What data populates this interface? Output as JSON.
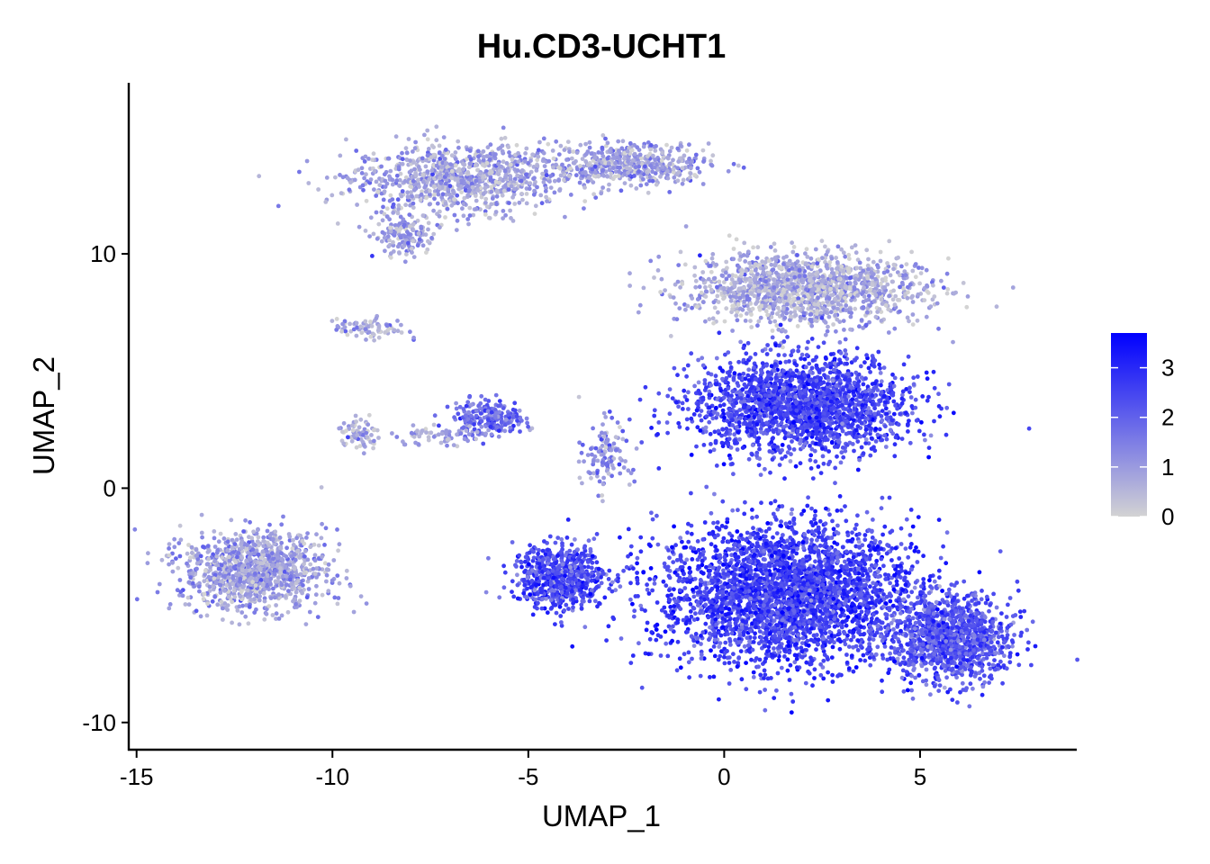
{
  "chart_data": {
    "type": "scatter",
    "title": "Hu.CD3-UCHT1",
    "xlabel": "UMAP_1",
    "ylabel": "UMAP_2",
    "xlim": [
      -15.2,
      9.0
    ],
    "ylim": [
      -11.2,
      17.3
    ],
    "x_ticks": [
      -15,
      -10,
      -5,
      0,
      5
    ],
    "y_ticks": [
      -10,
      0,
      10
    ],
    "grid": false,
    "legend_position": "right",
    "color_scale": {
      "low": "#d3d3d3",
      "high": "#0000ff",
      "range": [
        0,
        3.7
      ],
      "ticks": [
        0,
        1,
        2,
        3
      ]
    },
    "clusters": [
      {
        "label": "top-left arm",
        "center": [
          -6.8,
          13.2
        ],
        "spread": [
          1.8,
          1.0
        ],
        "n": 900,
        "mean_expr": 0.8
      },
      {
        "label": "top-right arm",
        "center": [
          -2.5,
          13.8
        ],
        "spread": [
          1.4,
          0.6
        ],
        "n": 500,
        "mean_expr": 0.9
      },
      {
        "label": "upper-left tail",
        "center": [
          -8.2,
          10.8
        ],
        "spread": [
          0.5,
          0.6
        ],
        "n": 150,
        "mean_expr": 0.8
      },
      {
        "label": "left bridge",
        "center": [
          -9.0,
          6.8
        ],
        "spread": [
          0.6,
          0.3
        ],
        "n": 80,
        "mean_expr": 0.8
      },
      {
        "label": "small center cluster",
        "center": [
          -6.0,
          3.0
        ],
        "spread": [
          0.6,
          0.5
        ],
        "n": 220,
        "mean_expr": 1.8
      },
      {
        "label": "left strand",
        "center": [
          -9.3,
          2.3
        ],
        "spread": [
          0.4,
          0.4
        ],
        "n": 70,
        "mean_expr": 0.7
      },
      {
        "label": "left strand 2",
        "center": [
          -7.3,
          2.2
        ],
        "spread": [
          0.8,
          0.3
        ],
        "n": 60,
        "mean_expr": 0.7
      },
      {
        "label": "bottom-left blob",
        "center": [
          -12.0,
          -3.5
        ],
        "spread": [
          1.2,
          1.1
        ],
        "n": 1100,
        "mean_expr": 0.9
      },
      {
        "label": "small lobe",
        "center": [
          -4.2,
          -3.8
        ],
        "spread": [
          0.8,
          0.9
        ],
        "n": 650,
        "mean_expr": 2.4
      },
      {
        "label": "strand near lobe",
        "center": [
          -3.0,
          1.5
        ],
        "spread": [
          0.4,
          1.0
        ],
        "n": 120,
        "mean_expr": 1.2
      },
      {
        "label": "main upper light region",
        "center": [
          2.0,
          8.5
        ],
        "spread": [
          2.0,
          1.0
        ],
        "n": 1400,
        "mean_expr": 0.7
      },
      {
        "label": "main mid region",
        "center": [
          2.0,
          3.5
        ],
        "spread": [
          1.8,
          1.4
        ],
        "n": 2000,
        "mean_expr": 2.5
      },
      {
        "label": "main lower region",
        "center": [
          1.6,
          -4.5
        ],
        "spread": [
          2.2,
          2.0
        ],
        "n": 3200,
        "mean_expr": 2.6
      },
      {
        "label": "right lobe",
        "center": [
          5.8,
          -6.5
        ],
        "spread": [
          1.0,
          1.2
        ],
        "n": 1100,
        "mean_expr": 2.2
      }
    ]
  }
}
